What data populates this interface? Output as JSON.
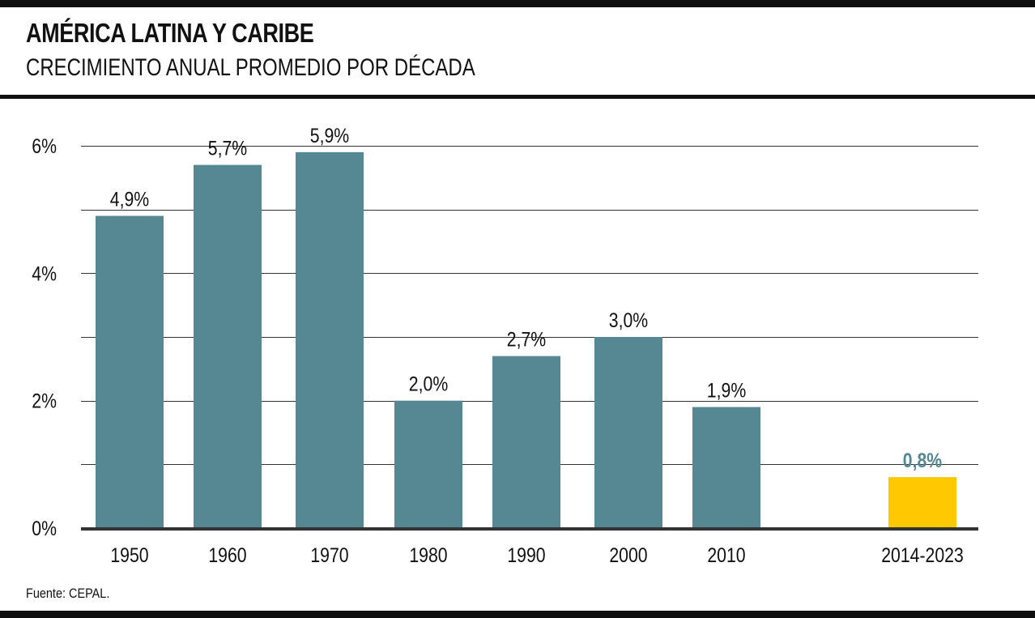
{
  "header": {
    "title": "AMÉRICA LATINA Y CARIBE",
    "subtitle": "CRECIMIENTO ANUAL PROMEDIO POR DÉCADA"
  },
  "footer": {
    "source": "Fuente: CEPAL."
  },
  "colors": {
    "bar": "#568894",
    "highlight_bar": "#ffc800",
    "highlight_label": "#568894",
    "grid": "#333333",
    "rule": "#0f0f0f"
  },
  "chart_data": {
    "type": "bar",
    "title": "AMÉRICA LATINA Y CARIBE",
    "subtitle": "CRECIMIENTO ANUAL PROMEDIO POR DÉCADA",
    "xlabel": "",
    "ylabel": "",
    "categories": [
      "1950",
      "1960",
      "1970",
      "1980",
      "1990",
      "2000",
      "2010",
      "2014-2023"
    ],
    "values": [
      4.9,
      5.7,
      5.9,
      2.0,
      2.7,
      3.0,
      1.9,
      0.8
    ],
    "value_labels": [
      "4,9%",
      "5,7%",
      "5,9%",
      "2,0%",
      "2,7%",
      "3,0%",
      "1,9%",
      "0,8%"
    ],
    "highlight": [
      false,
      false,
      false,
      false,
      false,
      false,
      false,
      true
    ],
    "ylim": [
      0,
      6
    ],
    "y_ticks": [
      0,
      2,
      4,
      6
    ],
    "y_tick_labels": [
      "0%",
      "2%",
      "4%",
      "6%"
    ],
    "gridlines": [
      1,
      2,
      3,
      4,
      5,
      6
    ],
    "grid": true,
    "legend": "none"
  }
}
